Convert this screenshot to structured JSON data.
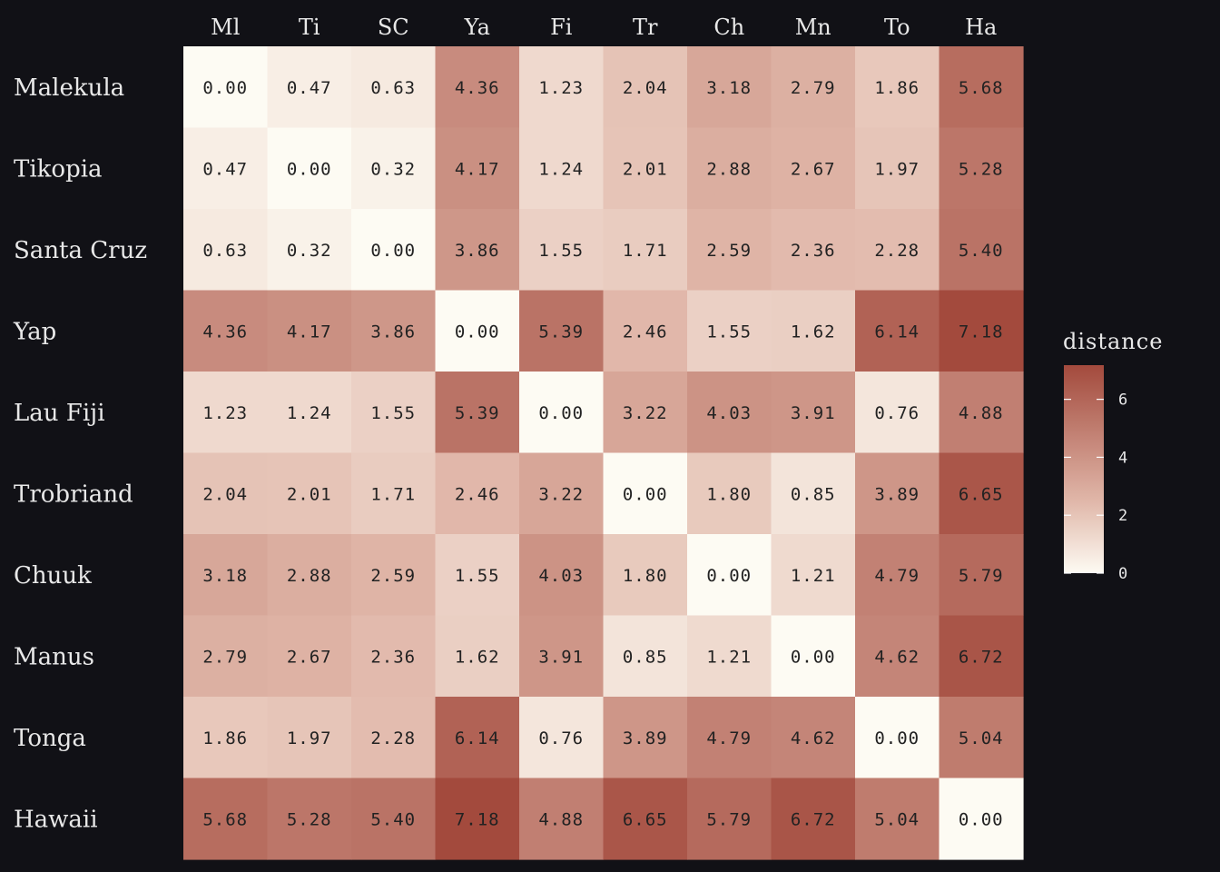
{
  "chart_data": {
    "type": "heatmap",
    "title": "",
    "row_labels": [
      "Malekula",
      "Tikopia",
      "Santa Cruz",
      "Yap",
      "Lau Fiji",
      "Trobriand",
      "Chuuk",
      "Manus",
      "Tonga",
      "Hawaii"
    ],
    "col_labels": [
      "Ml",
      "Ti",
      "SC",
      "Ya",
      "Fi",
      "Tr",
      "Ch",
      "Mn",
      "To",
      "Ha"
    ],
    "values": [
      [
        0.0,
        0.47,
        0.63,
        4.36,
        1.23,
        2.04,
        3.18,
        2.79,
        1.86,
        5.68
      ],
      [
        0.47,
        0.0,
        0.32,
        4.17,
        1.24,
        2.01,
        2.88,
        2.67,
        1.97,
        5.28
      ],
      [
        0.63,
        0.32,
        0.0,
        3.86,
        1.55,
        1.71,
        2.59,
        2.36,
        2.28,
        5.4
      ],
      [
        4.36,
        4.17,
        3.86,
        0.0,
        5.39,
        2.46,
        1.55,
        1.62,
        6.14,
        7.18
      ],
      [
        1.23,
        1.24,
        1.55,
        5.39,
        0.0,
        3.22,
        4.03,
        3.91,
        0.76,
        4.88
      ],
      [
        2.04,
        2.01,
        1.71,
        2.46,
        3.22,
        0.0,
        1.8,
        0.85,
        3.89,
        6.65
      ],
      [
        3.18,
        2.88,
        2.59,
        1.55,
        4.03,
        1.8,
        0.0,
        1.21,
        4.79,
        5.79
      ],
      [
        2.79,
        2.67,
        2.36,
        1.62,
        3.91,
        0.85,
        1.21,
        0.0,
        4.62,
        6.72
      ],
      [
        1.86,
        1.97,
        2.28,
        6.14,
        0.76,
        3.89,
        4.79,
        4.62,
        0.0,
        5.04
      ],
      [
        5.68,
        5.28,
        5.4,
        7.18,
        4.88,
        6.65,
        5.79,
        6.72,
        5.04,
        0.0
      ]
    ],
    "legend": {
      "title": "distance",
      "ticks": [
        0,
        2,
        4,
        6
      ],
      "range": [
        0,
        7.18
      ],
      "placement": "right"
    },
    "color_low": "#fdfbf3",
    "color_high": "#a34a3d",
    "background": "#111116"
  }
}
